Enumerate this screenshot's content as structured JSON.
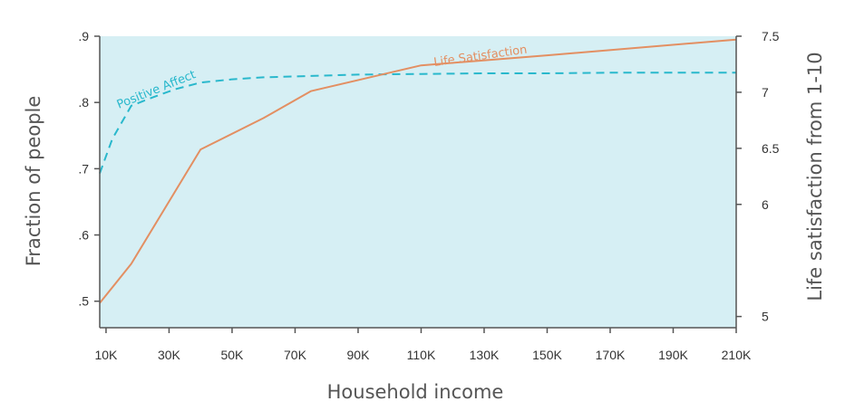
{
  "chart_data": {
    "type": "line",
    "xlabel": "Household income",
    "ylabel_left": "Fraction of people",
    "ylabel_right": "Life satisfaction from 1-10",
    "x_ticks": [
      10000,
      30000,
      50000,
      70000,
      90000,
      110000,
      130000,
      150000,
      170000,
      190000,
      210000
    ],
    "x_tick_labels": [
      "10K",
      "30K",
      "50K",
      "70K",
      "90K",
      "110K",
      "130K",
      "150K",
      "170K",
      "190K",
      "210K"
    ],
    "xlim": [
      8000,
      210000
    ],
    "ylim_left": [
      0.46,
      0.9
    ],
    "y_left_ticks": [
      0.5,
      0.6,
      0.7,
      0.8,
      0.9
    ],
    "y_left_tick_labels": [
      ".5",
      ".6",
      ".7",
      ".8",
      ".9"
    ],
    "ylim_right": [
      4.9,
      7.5
    ],
    "y_right_ticks": [
      5,
      6,
      6.5,
      7,
      7.5
    ],
    "y_right_tick_labels": [
      "5",
      "6",
      "6.5",
      "7",
      "7.5"
    ],
    "grid": false,
    "background": "#d6eff4",
    "series": [
      {
        "name": "Positive Affect",
        "axis": "left",
        "style": "dashed",
        "color": "#29b8cc",
        "x": [
          8000,
          12000,
          18000,
          25000,
          32000,
          40000,
          50000,
          60000,
          75000,
          90000,
          110000,
          130000,
          150000,
          170000,
          190000,
          210000
        ],
        "y": [
          0.693,
          0.745,
          0.795,
          0.808,
          0.82,
          0.83,
          0.835,
          0.838,
          0.84,
          0.842,
          0.843,
          0.844,
          0.844,
          0.845,
          0.845,
          0.845
        ]
      },
      {
        "name": "Life Satisfaction",
        "axis": "right",
        "style": "solid",
        "color": "#e38f62",
        "x": [
          8000,
          18000,
          40000,
          60000,
          75000,
          110000,
          150000,
          210000
        ],
        "y": [
          5.12,
          5.47,
          6.49,
          6.77,
          7.01,
          7.24,
          7.33,
          7.47
        ]
      }
    ]
  }
}
